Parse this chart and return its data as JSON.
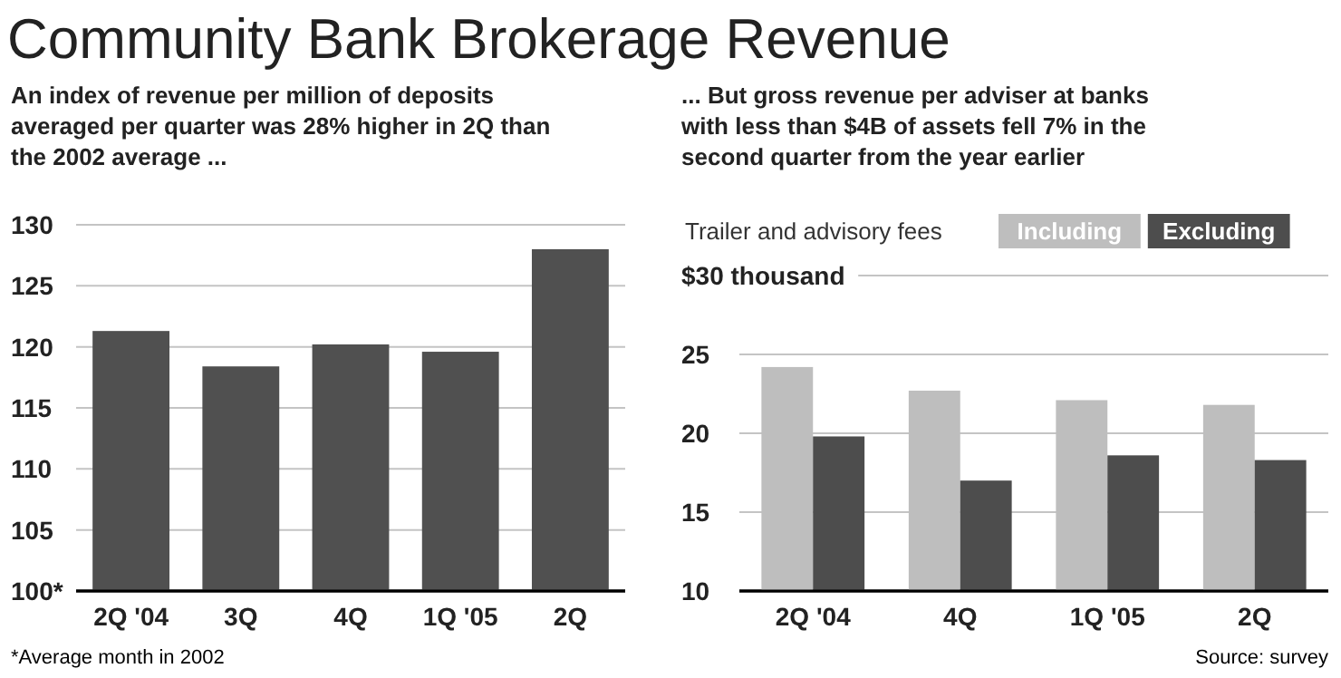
{
  "chart_data": [
    {
      "type": "bar",
      "title": "Community Bank Brokerage Revenue",
      "subtitle": "An index of revenue per million of deposits averaged per quarter was 28% higher in 2Q than the 2002 average ...",
      "categories": [
        "2Q '04",
        "3Q",
        "4Q",
        "1Q '05",
        "2Q"
      ],
      "values": [
        121.3,
        118.4,
        120.2,
        119.6,
        128.0
      ],
      "color": "#505050",
      "ylim": [
        100,
        130
      ],
      "yticks": [
        {
          "value": 100,
          "label": "100*"
        },
        105,
        110,
        115,
        120,
        125,
        130
      ],
      "grid": "y",
      "annotations": [
        "*Average month in 2002"
      ]
    },
    {
      "type": "bar",
      "subtitle": "... But gross revenue per adviser at banks with less than $4B of assets fell 7% in the second quarter from the year earlier",
      "categories": [
        "2Q '04",
        "4Q",
        "1Q '05",
        "2Q"
      ],
      "legend_title": "Trailer and advisory fees",
      "legend": "top",
      "series": [
        {
          "name": "Including",
          "color": "#bebebe",
          "values": [
            24.2,
            22.7,
            22.1,
            21.8
          ]
        },
        {
          "name": "Excluding",
          "color": "#4d4d4d",
          "values": [
            19.8,
            17.0,
            18.6,
            18.3
          ]
        }
      ],
      "ylim": [
        10,
        30
      ],
      "yticks": [
        10,
        15,
        20,
        25,
        {
          "value": 30,
          "label": "$30 thousand"
        }
      ],
      "grid": "y",
      "annotations": [
        "Source: survey"
      ]
    }
  ]
}
